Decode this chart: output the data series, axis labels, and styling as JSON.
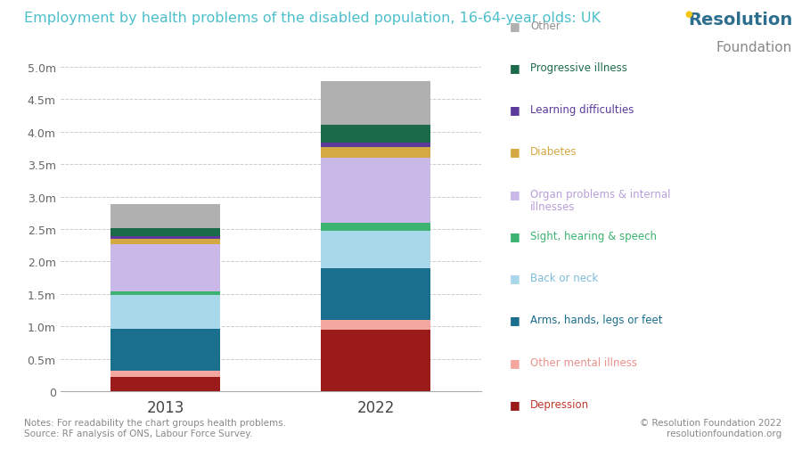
{
  "title": "Employment by health problems of the disabled population, 16-64-year olds: UK",
  "categories": [
    "2013",
    "2022"
  ],
  "segments": [
    {
      "label": "Depression",
      "color": "#9B1B1B",
      "text_color": "#c0392b",
      "values": [
        220000,
        950000
      ]
    },
    {
      "label": "Other mental illness",
      "color": "#F4A6A0",
      "text_color": "#e8928c",
      "values": [
        100000,
        150000
      ]
    },
    {
      "label": "Arms, hands, legs or feet",
      "color": "#1A6E8E",
      "text_color": "#1a6e8e",
      "values": [
        650000,
        800000
      ]
    },
    {
      "label": "Back or neck",
      "color": "#A8D8EA",
      "text_color": "#7bbcda",
      "values": [
        520000,
        570000
      ]
    },
    {
      "label": "Sight, hearing & speech",
      "color": "#3CB371",
      "text_color": "#3cb371",
      "values": [
        55000,
        130000
      ]
    },
    {
      "label": "Organ problems & internal\nillnesses",
      "color": "#C9B8E8",
      "text_color": "#b8a0d8",
      "values": [
        720000,
        1000000
      ]
    },
    {
      "label": "Diabetes",
      "color": "#D4A843",
      "text_color": "#d4a843",
      "values": [
        90000,
        170000
      ]
    },
    {
      "label": "Learning difficulties",
      "color": "#5B3A9B",
      "text_color": "#5b3a9b",
      "values": [
        35000,
        60000
      ]
    },
    {
      "label": "Progressive illness",
      "color": "#1B6B4A",
      "text_color": "#1b6b4a",
      "values": [
        120000,
        270000
      ]
    },
    {
      "label": "Other",
      "color": "#B0B0B0",
      "text_color": "#909090",
      "values": [
        370000,
        680000
      ]
    }
  ],
  "ylim": [
    0,
    5000000
  ],
  "yticks": [
    0,
    500000,
    1000000,
    1500000,
    2000000,
    2500000,
    3000000,
    3500000,
    4000000,
    4500000,
    5000000
  ],
  "ytick_labels": [
    "0",
    "0.5m",
    "1.0m",
    "1.5m",
    "2.0m",
    "2.5m",
    "3.0m",
    "3.5m",
    "4.0m",
    "4.5m",
    "5.0m"
  ],
  "background_color": "#FFFFFF",
  "note": "Notes: For readability the chart groups health problems.\nSource: RF analysis of ONS, Labour Force Survey.",
  "copyright": "© Resolution Foundation 2022\nresolutionfoundation.org",
  "title_color": "#4CBFCB",
  "rf_bold": "Resolution",
  "rf_light": "Foundation",
  "rf_bold_color": "#2d6e8e",
  "rf_light_color": "#888888",
  "rf_dot_color": "#F5C518"
}
